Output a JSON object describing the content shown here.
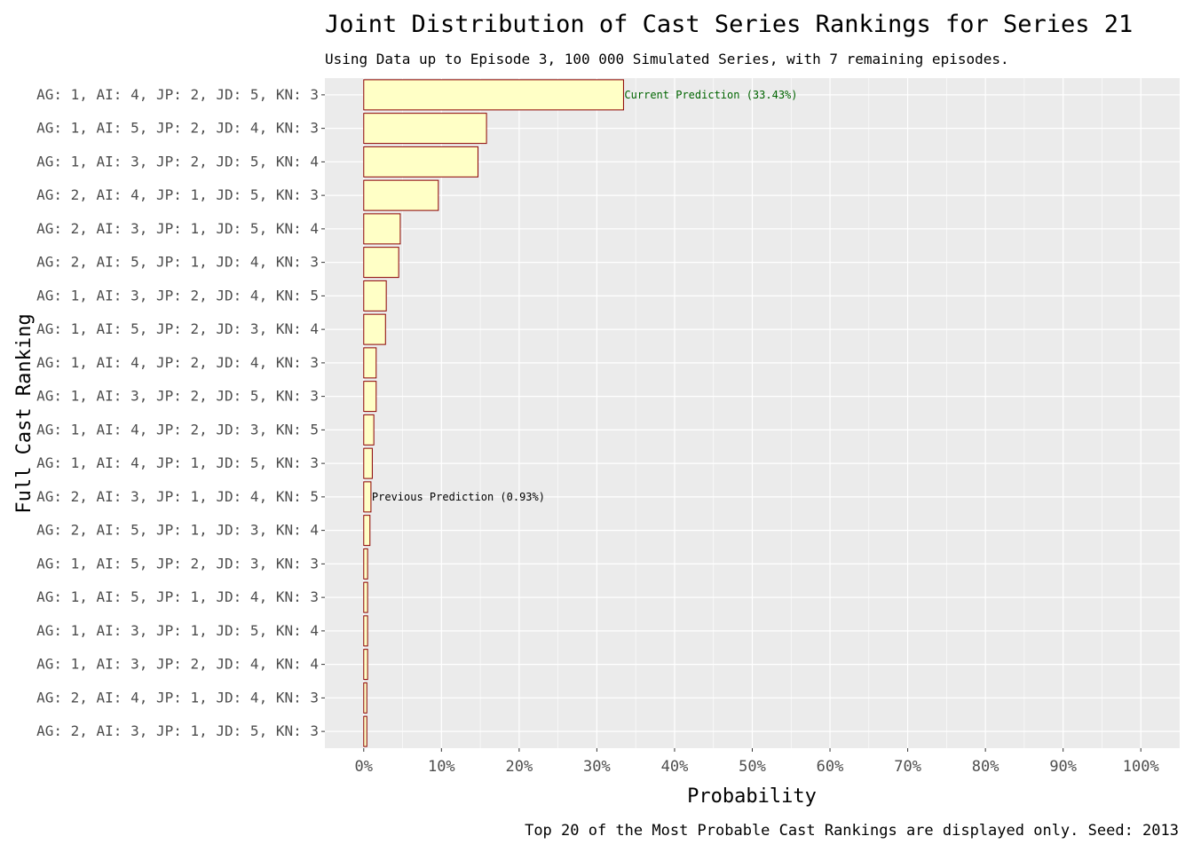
{
  "chart_data": {
    "type": "bar",
    "orientation": "horizontal",
    "title": "Joint Distribution of Cast Series Rankings for Series 21",
    "subtitle": "Using Data up to Episode 3, 100 000 Simulated Series, with 7 remaining episodes.",
    "caption": "Top 20 of the Most Probable Cast Rankings are displayed only. Seed: 2013",
    "xlabel": "Probability",
    "ylabel": "Full Cast Ranking",
    "xlim": [
      -0.05,
      1.05
    ],
    "xticks": [
      0,
      0.1,
      0.2,
      0.3,
      0.4,
      0.5,
      0.6,
      0.7,
      0.8,
      0.9,
      1.0
    ],
    "xtick_labels": [
      "0%",
      "10%",
      "20%",
      "30%",
      "40%",
      "50%",
      "60%",
      "70%",
      "80%",
      "90%",
      "100%"
    ],
    "grid": true,
    "colors": {
      "panel": "#ebebeb",
      "grid": "#ffffff",
      "bar_fill": "#ffffc6",
      "bar_stroke": "#8b0000",
      "current_label": "#006400",
      "previous_label": "#000000"
    },
    "categories": [
      "AG: 1, AI: 4, JP: 2, JD: 5, KN: 3",
      "AG: 1, AI: 5, JP: 2, JD: 4, KN: 3",
      "AG: 1, AI: 3, JP: 2, JD: 5, KN: 4",
      "AG: 2, AI: 4, JP: 1, JD: 5, KN: 3",
      "AG: 2, AI: 3, JP: 1, JD: 5, KN: 4",
      "AG: 2, AI: 5, JP: 1, JD: 4, KN: 3",
      "AG: 1, AI: 3, JP: 2, JD: 4, KN: 5",
      "AG: 1, AI: 5, JP: 2, JD: 3, KN: 4",
      "AG: 1, AI: 4, JP: 2, JD: 4, KN: 3",
      "AG: 1, AI: 3, JP: 2, JD: 5, KN: 3",
      "AG: 1, AI: 4, JP: 2, JD: 3, KN: 5",
      "AG: 1, AI: 4, JP: 1, JD: 5, KN: 3",
      "AG: 2, AI: 3, JP: 1, JD: 4, KN: 5",
      "AG: 2, AI: 5, JP: 1, JD: 3, KN: 4",
      "AG: 1, AI: 5, JP: 2, JD: 3, KN: 3",
      "AG: 1, AI: 5, JP: 1, JD: 4, KN: 3",
      "AG: 1, AI: 3, JP: 1, JD: 5, KN: 4",
      "AG: 1, AI: 3, JP: 2, JD: 4, KN: 4",
      "AG: 2, AI: 4, JP: 1, JD: 4, KN: 3",
      "AG: 2, AI: 3, JP: 1, JD: 5, KN: 3"
    ],
    "values": [
      0.3343,
      0.158,
      0.147,
      0.096,
      0.047,
      0.045,
      0.029,
      0.028,
      0.016,
      0.016,
      0.013,
      0.011,
      0.0093,
      0.008,
      0.005,
      0.005,
      0.005,
      0.005,
      0.004,
      0.004
    ],
    "annotations": [
      {
        "category_index": 0,
        "text": "Current Prediction (33.43%)",
        "color": "#006400"
      },
      {
        "category_index": 12,
        "text": "Previous Prediction (0.93%)",
        "color": "#000000"
      }
    ]
  }
}
